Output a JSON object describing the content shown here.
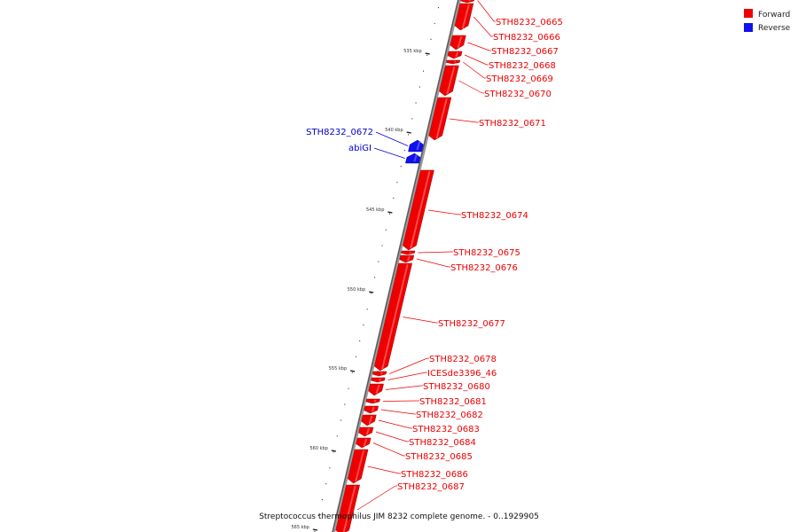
{
  "caption": "Streptococcus thermophilus JIM 8232 complete genome. - 0..1929905",
  "legend": [
    {
      "label": "Forward",
      "color": "#ee0000"
    },
    {
      "label": "Reverse",
      "color": "#1111ee"
    }
  ],
  "ticks": [
    "535 kbp",
    "540 kbp",
    "545 kbp",
    "550 kbp",
    "555 kbp",
    "560 kbp",
    "565 kbp"
  ],
  "genes": [
    {
      "name": "STH8232_0665",
      "strand": "forward"
    },
    {
      "name": "STH8232_0666",
      "strand": "forward"
    },
    {
      "name": "STH8232_0667",
      "strand": "forward"
    },
    {
      "name": "STH8232_0668",
      "strand": "forward"
    },
    {
      "name": "STH8232_0669",
      "strand": "forward"
    },
    {
      "name": "STH8232_0670",
      "strand": "forward"
    },
    {
      "name": "STH8232_0671",
      "strand": "forward"
    },
    {
      "name": "STH8232_0672",
      "strand": "reverse"
    },
    {
      "name": "abiGI",
      "strand": "reverse"
    },
    {
      "name": "STH8232_0674",
      "strand": "forward"
    },
    {
      "name": "STH8232_0675",
      "strand": "forward"
    },
    {
      "name": "STH8232_0676",
      "strand": "forward"
    },
    {
      "name": "STH8232_0677",
      "strand": "forward"
    },
    {
      "name": "STH8232_0678",
      "strand": "forward"
    },
    {
      "name": "ICESde3396_46",
      "strand": "forward"
    },
    {
      "name": "STH8232_0680",
      "strand": "forward"
    },
    {
      "name": "STH8232_0681",
      "strand": "forward"
    },
    {
      "name": "STH8232_0682",
      "strand": "forward"
    },
    {
      "name": "STH8232_0683",
      "strand": "forward"
    },
    {
      "name": "STH8232_0684",
      "strand": "forward"
    },
    {
      "name": "STH8232_0685",
      "strand": "forward"
    },
    {
      "name": "STH8232_0686",
      "strand": "forward"
    },
    {
      "name": "STH8232_0687",
      "strand": "forward"
    }
  ]
}
